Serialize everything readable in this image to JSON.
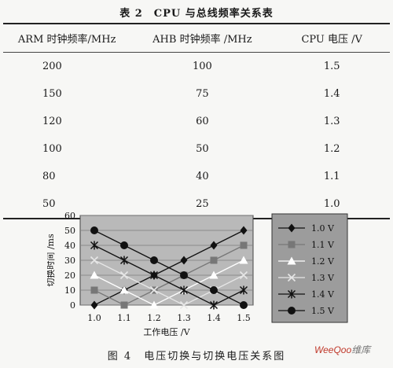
{
  "table": {
    "caption": "表 2　CPU 与总线频率关系表",
    "headers": [
      "ARM 时钟频率/MHz",
      "AHB 时钟频率 /MHz",
      "CPU 电压 /V"
    ],
    "rows": [
      [
        "200",
        "100",
        "1.5"
      ],
      [
        "150",
        "75",
        "1.4"
      ],
      [
        "120",
        "60",
        "1.3"
      ],
      [
        "100",
        "50",
        "1.2"
      ],
      [
        "80",
        "40",
        "1.1"
      ],
      [
        "50",
        "25",
        "1.0"
      ]
    ]
  },
  "figure_caption": "图 4　电压切换与切换电压关系图",
  "watermark": "WeeQoo维库",
  "chart_data": {
    "type": "line",
    "xlabel": "工作电压 /V",
    "ylabel": "切换时间 /ms",
    "categories": [
      "1.0",
      "1.1",
      "1.2",
      "1.3",
      "1.4",
      "1.5"
    ],
    "ylim": [
      0,
      60
    ],
    "yticks": [
      0,
      10,
      20,
      30,
      40,
      50,
      60
    ],
    "grid": true,
    "legend_position": "right",
    "series": [
      {
        "name": "1.0 V",
        "marker": "diamond",
        "color": "#111111",
        "values": [
          0,
          10,
          20,
          30,
          40,
          50
        ]
      },
      {
        "name": "1.1 V",
        "marker": "square",
        "color": "#777777",
        "values": [
          10,
          0,
          10,
          20,
          30,
          40
        ]
      },
      {
        "name": "1.2 V",
        "marker": "triangle",
        "color": "#ffffff",
        "values": [
          20,
          10,
          0,
          10,
          20,
          30
        ]
      },
      {
        "name": "1.3 V",
        "marker": "x",
        "color": "#e6e6e6",
        "values": [
          30,
          20,
          10,
          0,
          10,
          20
        ]
      },
      {
        "name": "1.4 V",
        "marker": "star",
        "color": "#111111",
        "values": [
          40,
          30,
          20,
          10,
          0,
          10
        ]
      },
      {
        "name": "1.5 V",
        "marker": "circle",
        "color": "#111111",
        "values": [
          50,
          40,
          30,
          20,
          10,
          0
        ]
      }
    ]
  }
}
